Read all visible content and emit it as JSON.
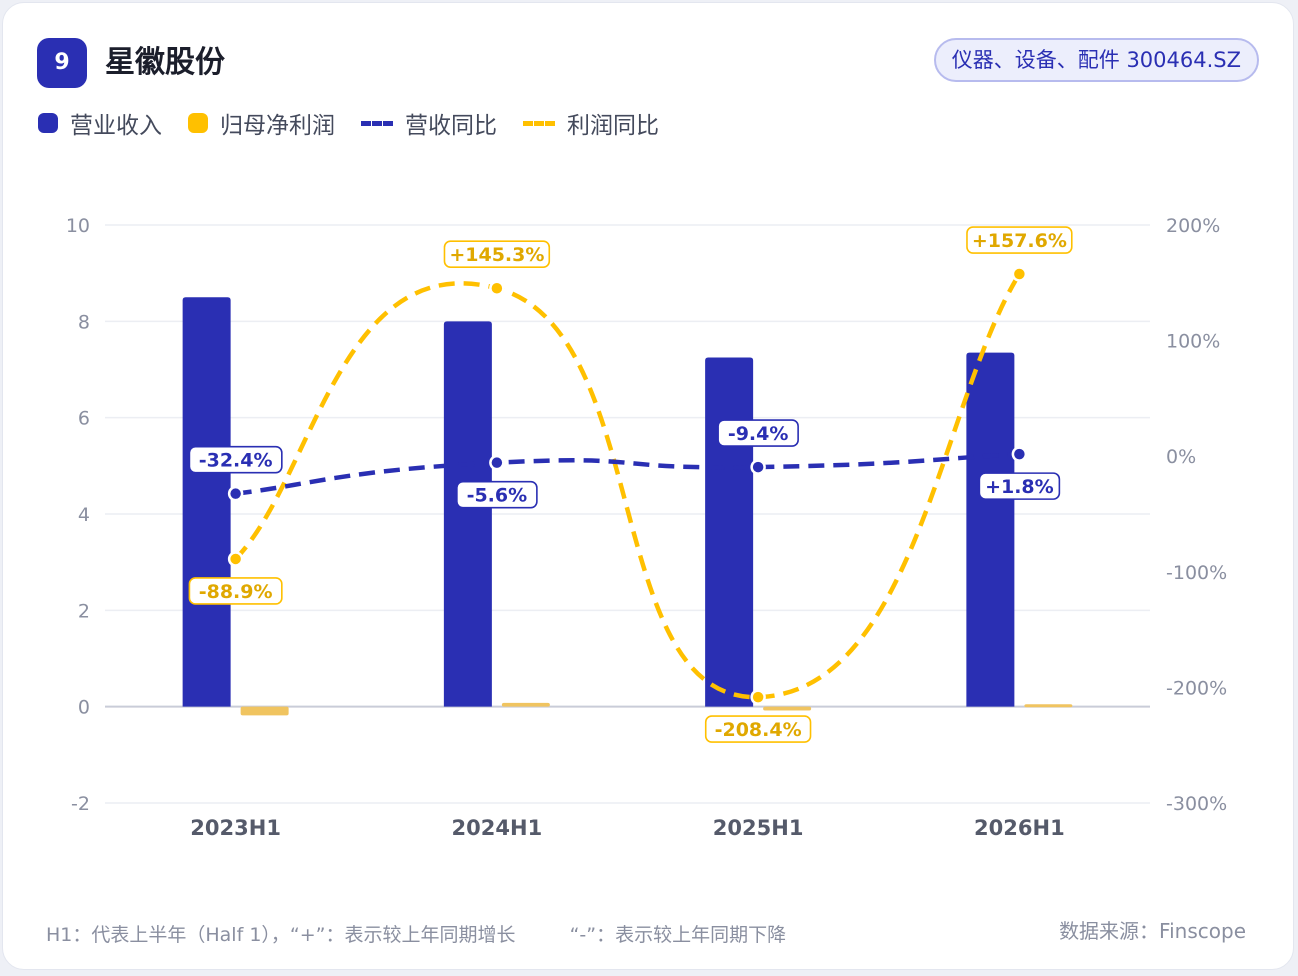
{
  "header": {
    "rank": "9",
    "title": "星徽股份",
    "tag": "仪器、设备、配件 300464.SZ"
  },
  "legend": [
    {
      "label": "营业收入",
      "kind": "dot",
      "color": "#2a2fb3"
    },
    {
      "label": "归母净利润",
      "kind": "dot",
      "color": "#ffc000"
    },
    {
      "label": "营收同比",
      "kind": "dash",
      "color": "#2a2fb3"
    },
    {
      "label": "利润同比",
      "kind": "dash",
      "color": "#ffc000"
    }
  ],
  "footer": {
    "note1": "H1：代表上半年（Half 1），“+”：表示较上年同期增长",
    "note2": "“-”：表示较上年同期下降",
    "source": "数据来源：Finscope"
  },
  "chart_data": {
    "type": "bar",
    "categories": [
      "2023H1",
      "2024H1",
      "2025H1",
      "2026H1"
    ],
    "series": [
      {
        "name": "营业收入",
        "type": "bar",
        "axis": "left",
        "color": "#2a2fb3",
        "values": [
          8.5,
          8.0,
          7.25,
          7.35
        ]
      },
      {
        "name": "归母净利润",
        "type": "bar",
        "axis": "left",
        "color": "#f0c460",
        "values": [
          -0.18,
          0.08,
          -0.08,
          0.05
        ]
      },
      {
        "name": "营收同比",
        "type": "line",
        "axis": "right",
        "color": "#2a2fb3",
        "values": [
          -32.4,
          -5.6,
          -9.4,
          1.8
        ],
        "labels": [
          "-32.4%",
          "-5.6%",
          "-9.4%",
          "+1.8%"
        ]
      },
      {
        "name": "利润同比",
        "type": "line",
        "axis": "right",
        "color": "#ffc000",
        "values": [
          -88.9,
          145.3,
          -208.4,
          157.6
        ],
        "labels": [
          "-88.9%",
          "+145.3%",
          "-208.4%",
          "+157.6%"
        ]
      }
    ],
    "y_left": {
      "min": -2,
      "max": 10,
      "ticks": [
        "10",
        "8",
        "6",
        "4",
        "2",
        "0",
        "-2"
      ]
    },
    "y_right": {
      "min": -300,
      "max": 200,
      "ticks": [
        "200%",
        "100%",
        "0%",
        "-100%",
        "-200%",
        "-300%"
      ]
    },
    "grid": true
  }
}
